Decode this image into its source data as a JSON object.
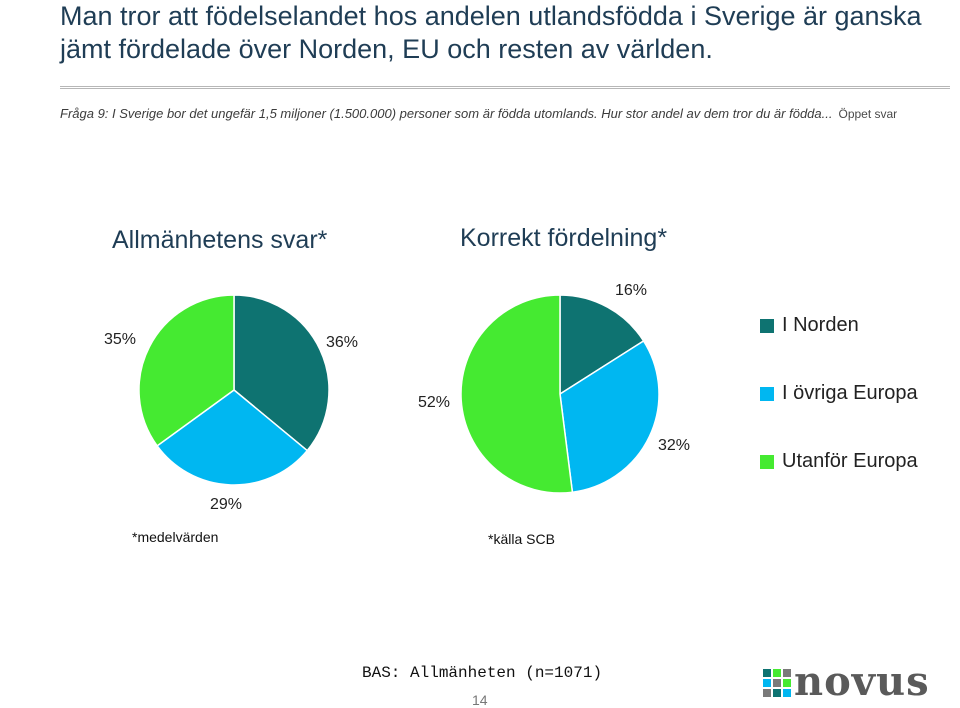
{
  "title": "Man tror att födelselandet hos andelen utlandsfödda i Sverige är ganska jämt fördelade över Norden, EU och resten av världen.",
  "question": {
    "text": "Fråga 9: I Sverige bor det ungefär 1,5 miljoner (1.500.000) personer som är födda utomlands. Hur stor andel av dem tror du är födda...",
    "type": "Öppet svar"
  },
  "colors": {
    "norden": "#0e7371",
    "europa": "#00b7f1",
    "utanfor": "#45ea31",
    "title": "#1f3d55"
  },
  "chart_data": [
    {
      "type": "pie",
      "title": "Allmänhetens svar*",
      "categories": [
        "I Norden",
        "I övriga Europa",
        "Utanför Europa"
      ],
      "values": [
        36,
        29,
        35
      ],
      "data_labels": [
        "36%",
        "29%",
        "35%"
      ],
      "footnote": "*medelvärden"
    },
    {
      "type": "pie",
      "title": "Korrekt fördelning*",
      "categories": [
        "I Norden",
        "I övriga Europa",
        "Utanför Europa"
      ],
      "values": [
        16,
        32,
        52
      ],
      "data_labels": [
        "16%",
        "32%",
        "52%"
      ],
      "footnote": "*källa SCB"
    }
  ],
  "legend": {
    "position": "right",
    "items": [
      "I Norden",
      "I övriga Europa",
      "Utanför Europa"
    ]
  },
  "footer": {
    "base": "BAS: Allmänheten (n=1071)",
    "page": "14",
    "logo_text": "novus"
  }
}
